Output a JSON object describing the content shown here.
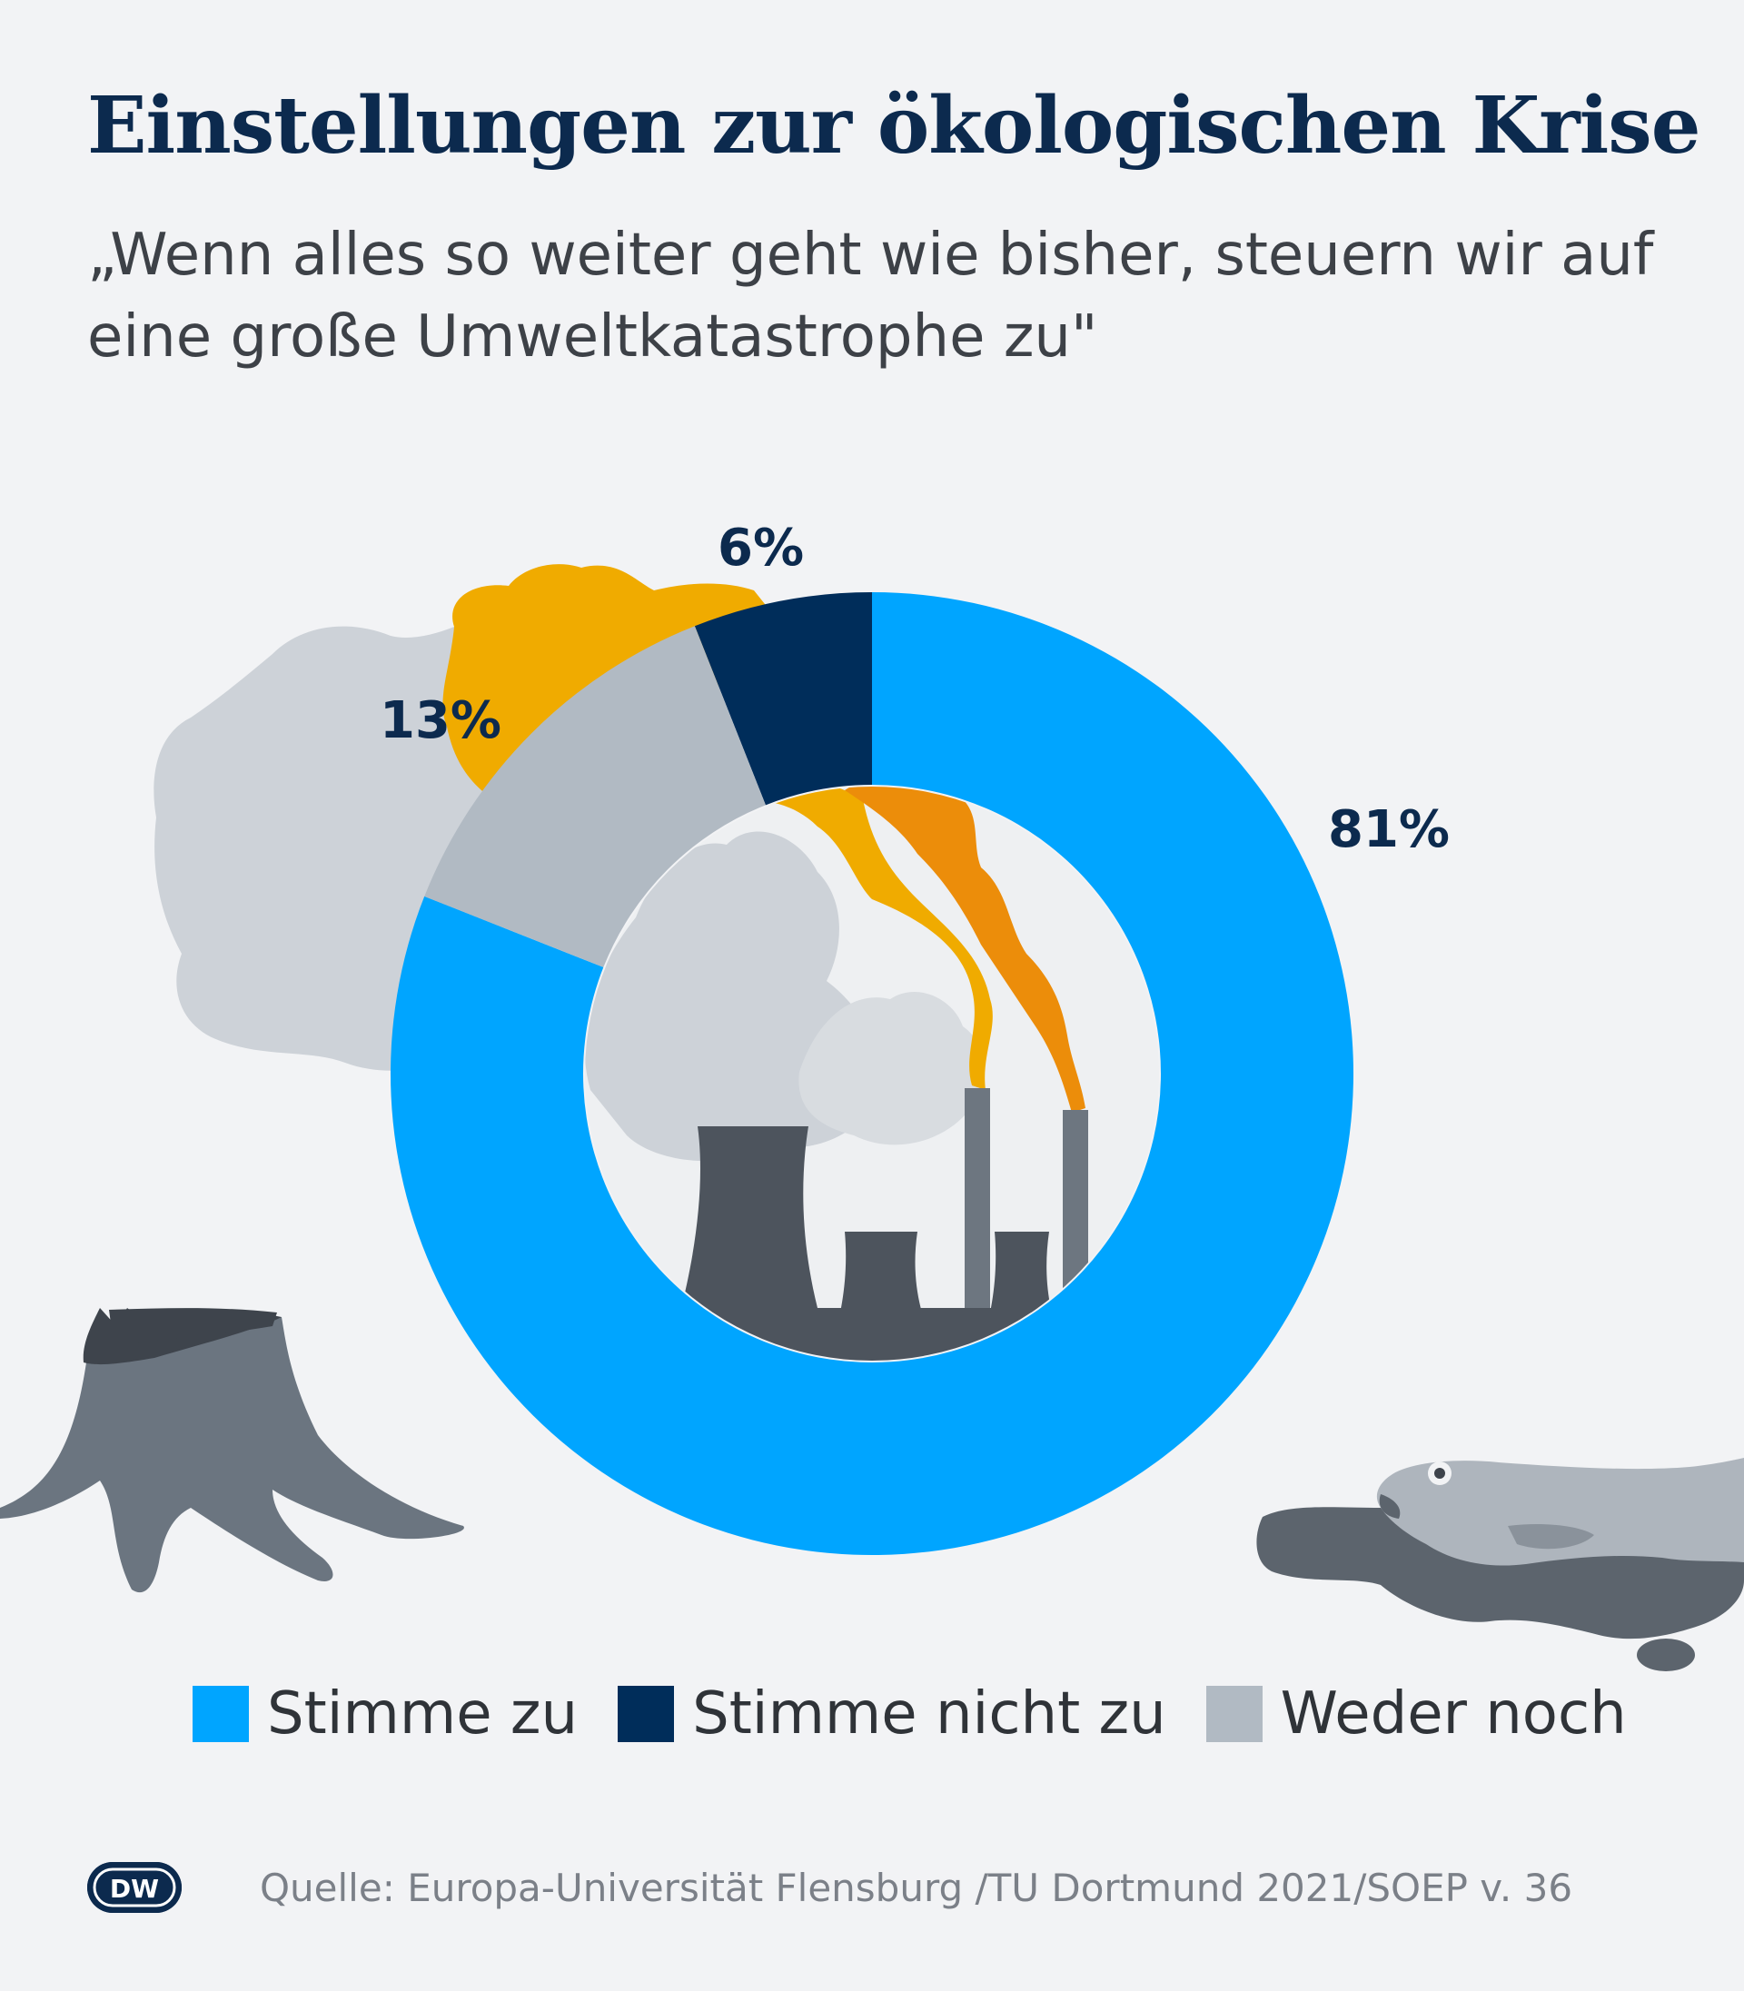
{
  "title": "Einstellungen zur ökologischen Krise",
  "subtitle": "„Wenn alles so weiter geht wie bisher, steuern wir auf eine große Umweltkatastrophe zu\"",
  "colors": {
    "agree": "#00a5ff",
    "disagree": "#002d5a",
    "neither": "#b1bac3",
    "label": "#0c2a4e",
    "background": "#f2f3f5"
  },
  "chart_data": {
    "type": "pie",
    "variant": "donut",
    "categories": [
      "Stimme zu",
      "Stimme nicht zu",
      "Weder noch"
    ],
    "values": [
      81,
      6,
      13
    ],
    "labels": [
      "81%",
      "6%",
      "13%"
    ],
    "colors": [
      "#00a5ff",
      "#002d5a",
      "#b1bac3"
    ],
    "legend_position": "bottom"
  },
  "legend": [
    {
      "label": "Stimme zu",
      "color": "#00a5ff"
    },
    {
      "label": "Stimme nicht zu",
      "color": "#002d5a"
    },
    {
      "label": "Weder noch",
      "color": "#b1bac3"
    }
  ],
  "logo_text": "DW",
  "source": "Quelle: Europa-Universität Flensburg /TU Dortmund 2021/SOEP v. 36",
  "decorations": [
    "smoke-cloud-icon",
    "factory-icon",
    "tree-stump-icon",
    "dead-fish-icon",
    "oil-spill-icon"
  ]
}
